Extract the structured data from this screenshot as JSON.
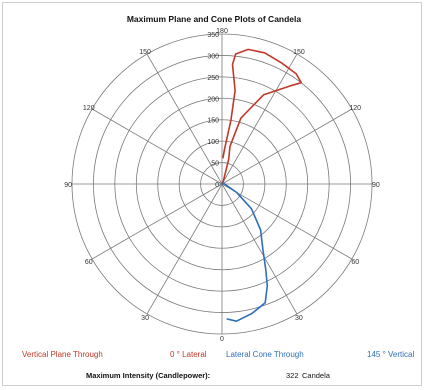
{
  "chart_data": {
    "type": "polar",
    "title": "Maximum Plane and Cone Plots of Candela",
    "radial_axis": {
      "min": 0,
      "max": 350,
      "ticks": [
        0,
        50,
        100,
        150,
        200,
        250,
        300,
        350
      ]
    },
    "angle_labels": [
      {
        "text": "180",
        "deg": 180
      },
      {
        "text": "150",
        "deg": 150
      },
      {
        "text": "150",
        "deg": -150
      },
      {
        "text": "120",
        "deg": 120
      },
      {
        "text": "120",
        "deg": -120
      },
      {
        "text": "90",
        "deg": 90
      },
      {
        "text": "90",
        "deg": -90
      },
      {
        "text": "60",
        "deg": 60
      },
      {
        "text": "60",
        "deg": -60
      },
      {
        "text": "30",
        "deg": 30
      },
      {
        "text": "30",
        "deg": -30
      },
      {
        "text": "0",
        "deg": 0
      }
    ],
    "series": [
      {
        "name": "Vertical Plane Through 0 ° Lateral",
        "color": "#c0392b",
        "points": [
          {
            "angle": 0,
            "value": 0
          },
          {
            "angle": 150,
            "value": 5
          },
          {
            "angle": 165,
            "value": 60
          },
          {
            "angle": 168,
            "value": 90
          },
          {
            "angle": 164,
            "value": 160
          },
          {
            "angle": 155,
            "value": 230
          },
          {
            "angle": 145,
            "value": 280
          },
          {
            "angle": 142,
            "value": 300
          },
          {
            "angle": 146,
            "value": 310
          },
          {
            "angle": 154,
            "value": 315
          },
          {
            "angle": 162,
            "value": 322
          },
          {
            "angle": 169,
            "value": 320
          },
          {
            "angle": 174,
            "value": 305
          },
          {
            "angle": 175,
            "value": 280
          },
          {
            "angle": 172,
            "value": 220
          },
          {
            "angle": 172,
            "value": 150
          },
          {
            "angle": 176,
            "value": 80
          },
          {
            "angle": 178,
            "value": 60
          }
        ]
      },
      {
        "name": "Lateral Cone Through 145 ° Vertical",
        "color": "#2e6fba",
        "points": [
          {
            "angle": 150,
            "value": 0
          },
          {
            "angle": 100,
            "value": 5
          },
          {
            "angle": 60,
            "value": 40
          },
          {
            "angle": 50,
            "value": 90
          },
          {
            "angle": 40,
            "value": 140
          },
          {
            "angle": 32,
            "value": 180
          },
          {
            "angle": 27,
            "value": 225
          },
          {
            "angle": 24,
            "value": 260
          },
          {
            "angle": 20,
            "value": 295
          },
          {
            "angle": 13,
            "value": 310
          },
          {
            "angle": 6,
            "value": 322
          },
          {
            "angle": 2,
            "value": 315
          }
        ]
      }
    ],
    "legend": {
      "red_left": "Vertical Plane Through",
      "red_right": "0 ° Lateral",
      "blue_left": "Lateral Cone Through",
      "blue_right": "145 ° Vertical"
    },
    "footer": {
      "label": "Maximum Intensity (Candlepower):",
      "value": "322",
      "unit": "Candela"
    }
  }
}
